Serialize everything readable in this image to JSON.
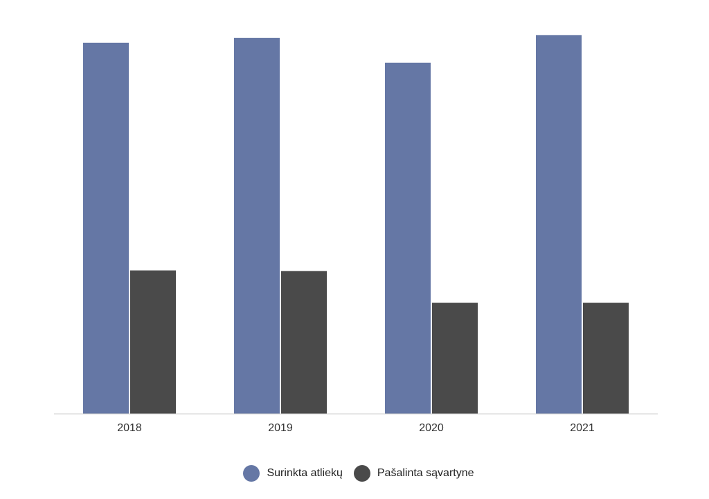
{
  "chart_data": {
    "type": "bar",
    "categories": [
      "2018",
      "2019",
      "2020",
      "2021"
    ],
    "series": [
      {
        "name": "Surinkta atliekų",
        "color": "#6577a5",
        "values": [
          538,
          545,
          509,
          549
        ]
      },
      {
        "name": "Pašalinta sąvartyne",
        "color": "#4a4a4a",
        "values": [
          208,
          207,
          161,
          161
        ]
      }
    ],
    "ylim": [
      0,
      600
    ],
    "grid": false,
    "legend_position": "bottom"
  }
}
